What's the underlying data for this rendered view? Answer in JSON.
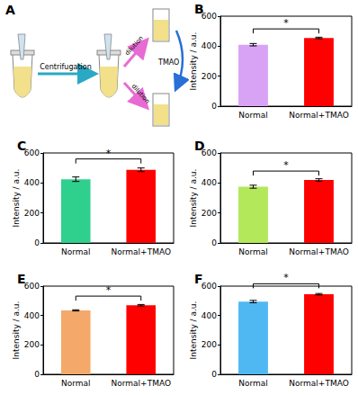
{
  "diagram": {
    "title": "A",
    "centrifugation": "Centrifugation",
    "dilution": [
      "dilution",
      "dilution"
    ],
    "additive": "TMAO"
  },
  "chart_data": [
    {
      "type": "bar",
      "title": "B",
      "categories": [
        "Normal",
        "Normal+TMAO"
      ],
      "values": [
        410,
        455
      ],
      "errors": [
        8,
        5
      ],
      "colors": [
        "#d9a3f5",
        "#ff0000"
      ],
      "ylabel": "Intensity / a.u.",
      "ylim": [
        0,
        600
      ],
      "yticks": [
        0,
        200,
        400,
        600
      ],
      "annotations": [
        "*"
      ]
    },
    {
      "type": "bar",
      "title": "C",
      "categories": [
        "Normal",
        "Normal+TMAO"
      ],
      "values": [
        425,
        488
      ],
      "errors": [
        15,
        12
      ],
      "colors": [
        "#2fd08e",
        "#ff0000"
      ],
      "ylabel": "Intensity / a.u.",
      "ylim": [
        0,
        600
      ],
      "yticks": [
        0,
        200,
        400,
        600
      ],
      "annotations": [
        "*"
      ]
    },
    {
      "type": "bar",
      "title": "D",
      "categories": [
        "Normal",
        "Normal+TMAO"
      ],
      "values": [
        375,
        420
      ],
      "errors": [
        10,
        8
      ],
      "colors": [
        "#b2e85a",
        "#ff0000"
      ],
      "ylabel": "Intensity / a.u.",
      "ylim": [
        0,
        600
      ],
      "yticks": [
        0,
        200,
        400,
        600
      ],
      "annotations": [
        "*"
      ]
    },
    {
      "type": "bar",
      "title": "E",
      "categories": [
        "Normal",
        "Normal+TMAO"
      ],
      "values": [
        435,
        470
      ],
      "errors": [
        4,
        5
      ],
      "colors": [
        "#f4a96a",
        "#ff0000"
      ],
      "ylabel": "Intensity / a.u.",
      "ylim": [
        0,
        600
      ],
      "yticks": [
        0,
        200,
        400,
        600
      ],
      "annotations": [
        "*"
      ]
    },
    {
      "type": "bar",
      "title": "F",
      "categories": [
        "Normal",
        "Normal+TMAO"
      ],
      "values": [
        495,
        545
      ],
      "errors": [
        8,
        5
      ],
      "colors": [
        "#4fb8f2",
        "#ff0000"
      ],
      "ylabel": "Intensity / a.u.",
      "ylim": [
        0,
        600
      ],
      "yticks": [
        0,
        200,
        400,
        600
      ],
      "annotations": [
        "*"
      ]
    }
  ]
}
